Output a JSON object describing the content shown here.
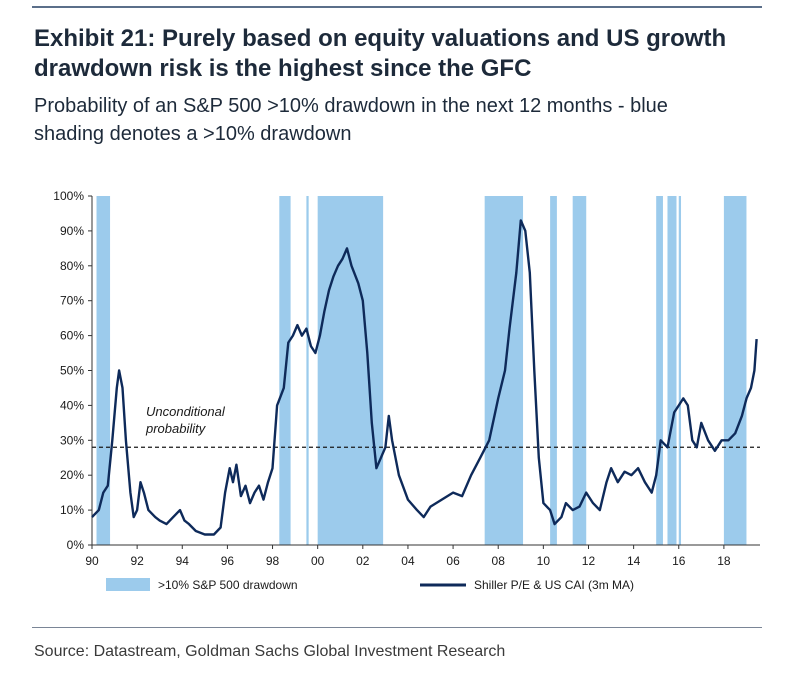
{
  "header": {
    "title_line1": "Exhibit 21: Purely based on equity valuations and US growth",
    "title_line2": "drawdown risk is the highest since the GFC",
    "subtitle_line1": "Probability of an S&P 500 >10% drawdown in the next 12 months - blue",
    "subtitle_line2": "shading denotes a >10% drawdown"
  },
  "footer": {
    "source": "Source: Datastream, Goldman Sachs Global Investment Research"
  },
  "colors": {
    "line": "#0e2a5a",
    "shading": "#9ccbec",
    "threshold": "#1a1a1a"
  },
  "chart_data": {
    "type": "line",
    "title": "Probability of an S&P 500 >10% drawdown in the next 12 months",
    "xlabel": "",
    "ylabel": "",
    "x_tick_labels": [
      "90",
      "92",
      "94",
      "96",
      "98",
      "00",
      "02",
      "04",
      "06",
      "08",
      "10",
      "12",
      "14",
      "16",
      "18"
    ],
    "x_tick_years": [
      1990,
      1992,
      1994,
      1996,
      1998,
      2000,
      2002,
      2004,
      2006,
      2008,
      2010,
      2012,
      2014,
      2016,
      2018
    ],
    "xlim": [
      1990,
      2019.6
    ],
    "y_tick_labels": [
      "0%",
      "10%",
      "20%",
      "30%",
      "40%",
      "50%",
      "60%",
      "70%",
      "80%",
      "90%",
      "100%"
    ],
    "ylim": [
      0,
      100
    ],
    "unconditional_probability": 28,
    "annotation": {
      "line1": "Unconditional",
      "line2": "probability"
    },
    "legend": {
      "shading_label": ">10% S&P 500 drawdown",
      "line_label": "Shiller P/E & US CAI (3m MA)"
    },
    "drawdown_periods": [
      [
        1990.2,
        1990.8
      ],
      [
        1998.3,
        1998.8
      ],
      [
        1999.5,
        1999.6
      ],
      [
        2000.0,
        2002.9
      ],
      [
        2007.4,
        2009.1
      ],
      [
        2010.3,
        2010.6
      ],
      [
        2011.3,
        2011.9
      ],
      [
        2015.0,
        2015.3
      ],
      [
        2015.5,
        2015.9
      ],
      [
        2016.0,
        2016.1
      ],
      [
        2018.0,
        2019.0
      ]
    ],
    "series": [
      {
        "name": "Shiller P/E & US CAI (3m MA)",
        "points": [
          [
            1990.0,
            8
          ],
          [
            1990.3,
            10
          ],
          [
            1990.5,
            15
          ],
          [
            1990.7,
            17
          ],
          [
            1990.9,
            30
          ],
          [
            1991.1,
            45
          ],
          [
            1991.2,
            50
          ],
          [
            1991.35,
            45
          ],
          [
            1991.5,
            30
          ],
          [
            1991.7,
            15
          ],
          [
            1991.85,
            8
          ],
          [
            1992.0,
            10
          ],
          [
            1992.15,
            18
          ],
          [
            1992.3,
            15
          ],
          [
            1992.5,
            10
          ],
          [
            1992.8,
            8
          ],
          [
            1993.0,
            7
          ],
          [
            1993.3,
            6
          ],
          [
            1993.6,
            8
          ],
          [
            1993.9,
            10
          ],
          [
            1994.1,
            7
          ],
          [
            1994.3,
            6
          ],
          [
            1994.6,
            4
          ],
          [
            1995.0,
            3
          ],
          [
            1995.4,
            3
          ],
          [
            1995.7,
            5
          ],
          [
            1995.9,
            15
          ],
          [
            1996.1,
            22
          ],
          [
            1996.25,
            18
          ],
          [
            1996.4,
            23
          ],
          [
            1996.6,
            14
          ],
          [
            1996.8,
            17
          ],
          [
            1997.0,
            12
          ],
          [
            1997.2,
            15
          ],
          [
            1997.4,
            17
          ],
          [
            1997.6,
            13
          ],
          [
            1997.8,
            18
          ],
          [
            1998.0,
            22
          ],
          [
            1998.2,
            40
          ],
          [
            1998.5,
            45
          ],
          [
            1998.7,
            58
          ],
          [
            1998.9,
            60
          ],
          [
            1999.1,
            63
          ],
          [
            1999.3,
            60
          ],
          [
            1999.5,
            62
          ],
          [
            1999.7,
            57
          ],
          [
            1999.9,
            55
          ],
          [
            2000.1,
            60
          ],
          [
            2000.3,
            67
          ],
          [
            2000.5,
            73
          ],
          [
            2000.7,
            77
          ],
          [
            2000.9,
            80
          ],
          [
            2001.1,
            82
          ],
          [
            2001.3,
            85
          ],
          [
            2001.5,
            80
          ],
          [
            2001.8,
            75
          ],
          [
            2002.0,
            70
          ],
          [
            2002.2,
            55
          ],
          [
            2002.4,
            35
          ],
          [
            2002.6,
            22
          ],
          [
            2002.8,
            25
          ],
          [
            2003.0,
            28
          ],
          [
            2003.15,
            37
          ],
          [
            2003.3,
            30
          ],
          [
            2003.6,
            20
          ],
          [
            2004.0,
            13
          ],
          [
            2004.4,
            10
          ],
          [
            2004.7,
            8
          ],
          [
            2005.0,
            11
          ],
          [
            2005.5,
            13
          ],
          [
            2006.0,
            15
          ],
          [
            2006.4,
            14
          ],
          [
            2006.8,
            20
          ],
          [
            2007.2,
            25
          ],
          [
            2007.6,
            30
          ],
          [
            2008.0,
            42
          ],
          [
            2008.3,
            50
          ],
          [
            2008.5,
            62
          ],
          [
            2008.8,
            78
          ],
          [
            2009.0,
            93
          ],
          [
            2009.2,
            90
          ],
          [
            2009.4,
            78
          ],
          [
            2009.6,
            50
          ],
          [
            2009.8,
            25
          ],
          [
            2010.0,
            12
          ],
          [
            2010.3,
            10
          ],
          [
            2010.5,
            6
          ],
          [
            2010.8,
            8
          ],
          [
            2011.0,
            12
          ],
          [
            2011.3,
            10
          ],
          [
            2011.6,
            11
          ],
          [
            2011.9,
            15
          ],
          [
            2012.2,
            12
          ],
          [
            2012.5,
            10
          ],
          [
            2012.8,
            18
          ],
          [
            2013.0,
            22
          ],
          [
            2013.3,
            18
          ],
          [
            2013.6,
            21
          ],
          [
            2013.9,
            20
          ],
          [
            2014.2,
            22
          ],
          [
            2014.5,
            18
          ],
          [
            2014.8,
            15
          ],
          [
            2015.0,
            20
          ],
          [
            2015.2,
            30
          ],
          [
            2015.5,
            28
          ],
          [
            2015.8,
            38
          ],
          [
            2016.0,
            40
          ],
          [
            2016.2,
            42
          ],
          [
            2016.4,
            40
          ],
          [
            2016.6,
            30
          ],
          [
            2016.8,
            28
          ],
          [
            2017.0,
            35
          ],
          [
            2017.3,
            30
          ],
          [
            2017.6,
            27
          ],
          [
            2017.9,
            30
          ],
          [
            2018.2,
            30
          ],
          [
            2018.5,
            32
          ],
          [
            2018.8,
            37
          ],
          [
            2019.0,
            42
          ],
          [
            2019.2,
            45
          ],
          [
            2019.35,
            50
          ],
          [
            2019.45,
            59
          ]
        ]
      }
    ]
  }
}
